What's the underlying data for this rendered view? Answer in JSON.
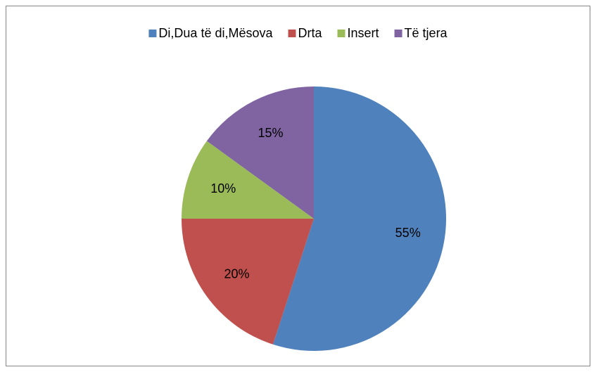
{
  "chart_data": {
    "type": "pie",
    "categories": [
      "Di,Dua të di,Mësova",
      "Drta",
      "Insert",
      "Të tjera"
    ],
    "values": [
      55,
      20,
      10,
      15
    ],
    "value_labels": [
      "55%",
      "20%",
      "10%",
      "15%"
    ],
    "colors": [
      "#4f81bd",
      "#c0504d",
      "#9bbb59",
      "#8064a2"
    ],
    "legend": "top"
  }
}
